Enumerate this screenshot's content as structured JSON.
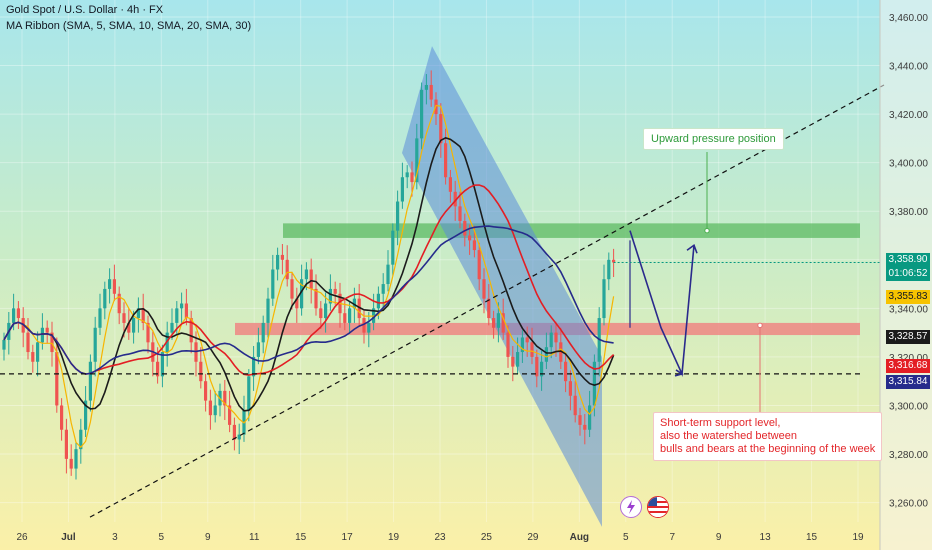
{
  "header": {
    "title": "Gold Spot / U.S. Dollar · 4h · FX",
    "indicator": "MA Ribbon (SMA, 5, SMA, 10, SMA, 20, SMA, 30)"
  },
  "price_tags": {
    "last": "3,358.90",
    "countdown": "01:06:52",
    "ma_yellow": "3,355.83",
    "ma_black": "3,328.57",
    "ma_red": "3,316.68",
    "ma_navy": "3,315.84"
  },
  "annotations": {
    "upward": "Upward pressure position",
    "support_line1": "Short-term support level,",
    "support_line2": "also the watershed between",
    "support_line3": "bulls and bears at the beginning of the week"
  },
  "colors": {
    "bg_top": "#a8e6ec",
    "bg_bottom": "#fbf0a8",
    "up": "#26a69a",
    "down": "#ef5350",
    "resistance_zone": "#5dbb63",
    "support_zone": "#f08080",
    "channel": "#5b8dd9",
    "ma5": "#f7b500",
    "ma10": "#1b1b1b",
    "ma20": "#e31e24",
    "ma30": "#262b8c",
    "forecast": "#2a2a8c"
  },
  "icons": [
    "lightning-icon",
    "us-flag-icon"
  ],
  "chart_data": {
    "type": "candlestick",
    "title": "Gold Spot / U.S. Dollar · 4h · FX",
    "xlabel": "",
    "ylabel": "",
    "x_ticks": [
      "26",
      "Jul",
      "3",
      "5",
      "9",
      "11",
      "15",
      "17",
      "19",
      "23",
      "25",
      "29",
      "Aug",
      "5",
      "7",
      "9",
      "13",
      "15",
      "19"
    ],
    "y_ticks": [
      3260,
      3280,
      3300,
      3320,
      3340,
      3360,
      3380,
      3400,
      3420,
      3440,
      3460
    ],
    "y_tick_labels": [
      "3,260.00",
      "3,280.00",
      "3,300.00",
      "3,320.00",
      "3,340.00",
      "3,360.00",
      "3,380.00",
      "3,400.00",
      "3,420.00",
      "3,440.00",
      "3,460.00"
    ],
    "ylim": [
      3252,
      3467
    ],
    "close_path": [
      3327,
      3334,
      3340,
      3336,
      3330,
      3322,
      3318,
      3326,
      3332,
      3330,
      3322,
      3300,
      3290,
      3278,
      3274,
      3282,
      3290,
      3302,
      3318,
      3332,
      3340,
      3348,
      3352,
      3346,
      3338,
      3334,
      3330,
      3336,
      3340,
      3334,
      3326,
      3318,
      3312,
      3322,
      3330,
      3334,
      3340,
      3342,
      3336,
      3326,
      3318,
      3310,
      3302,
      3296,
      3300,
      3306,
      3300,
      3292,
      3286,
      3288,
      3298,
      3312,
      3320,
      3326,
      3334,
      3344,
      3356,
      3362,
      3360,
      3352,
      3344,
      3340,
      3352,
      3356,
      3348,
      3340,
      3336,
      3342,
      3348,
      3346,
      3338,
      3334,
      3340,
      3344,
      3336,
      3330,
      3334,
      3340,
      3346,
      3350,
      3358,
      3372,
      3384,
      3394,
      3396,
      3392,
      3410,
      3430,
      3432,
      3426,
      3420,
      3408,
      3394,
      3388,
      3382,
      3376,
      3370,
      3368,
      3364,
      3352,
      3344,
      3336,
      3332,
      3338,
      3330,
      3320,
      3316,
      3322,
      3328,
      3326,
      3320,
      3312,
      3318,
      3324,
      3330,
      3326,
      3318,
      3310,
      3304,
      3296,
      3292,
      3290,
      3300,
      3318,
      3336,
      3352,
      3360,
      3358.9
    ],
    "ma_series": [
      {
        "name": "SMA 5",
        "period": 5
      },
      {
        "name": "SMA 10",
        "period": 10
      },
      {
        "name": "SMA 20",
        "period": 20
      },
      {
        "name": "SMA 30",
        "period": 30
      }
    ],
    "last_values": {
      "SMA 5": 3355.83,
      "SMA 10": 3328.57,
      "SMA 20": 3316.68,
      "SMA 30": 3315.84
    },
    "resistance_zone": [
      3369,
      3375
    ],
    "support_zone": [
      3329,
      3334
    ],
    "support_dashed_level": 3313,
    "upward_pressure_marker": 3372,
    "short_term_support_marker": 3333,
    "descending_channel": {
      "upper_start": 3448,
      "upper_end": 3320,
      "lower_start": 3404,
      "lower_end": 3250
    },
    "trendline": {
      "start": 3254,
      "end": 3432
    },
    "forecast_path": [
      3372,
      3332,
      3313,
      3366
    ]
  }
}
